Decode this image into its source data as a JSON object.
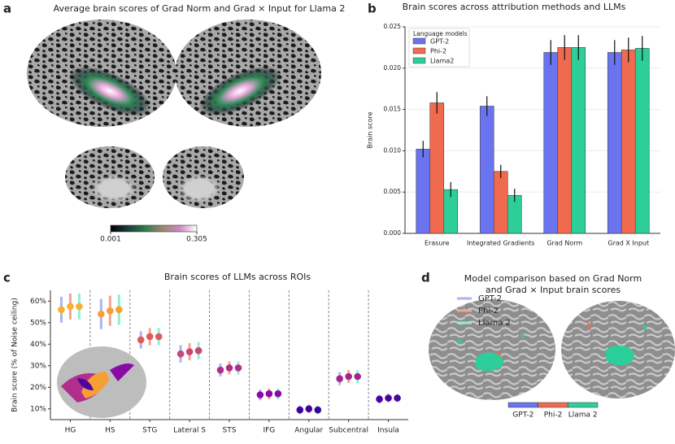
{
  "chart_data": [
    {
      "type": "brainmap",
      "panel": "a",
      "title": "Average brain scores of Grad Norm and Grad × Input for Llama 2",
      "colormap": [
        "#000000",
        "#1e3a3a",
        "#2f7a4a",
        "#9a8a6a",
        "#d088c8",
        "#ffffff"
      ],
      "clim": [
        0.001,
        0.305
      ],
      "colorbar_ticks": [
        0.001,
        0.305
      ]
    },
    {
      "type": "bar",
      "panel": "b",
      "title": "Brain scores across attribution methods and LLMs",
      "ylabel": "Brain score",
      "legend_title": "Language models",
      "legend": "upper left",
      "categories": [
        "Erasure",
        "Integrated Gradients",
        "Grad Norm",
        "Grad X Input"
      ],
      "series": [
        {
          "name": "GPT-2",
          "color": "#6b74f0",
          "values": [
            0.0102,
            0.0154,
            0.0219,
            0.0219
          ],
          "errors": [
            0.001,
            0.0012,
            0.0015,
            0.0015
          ]
        },
        {
          "name": "Phi-2",
          "color": "#f06a50",
          "values": [
            0.0158,
            0.0075,
            0.0225,
            0.0222
          ],
          "errors": [
            0.0013,
            0.0008,
            0.0015,
            0.0015
          ]
        },
        {
          "name": "Llama2",
          "color": "#2ccf9a",
          "values": [
            0.0053,
            0.0046,
            0.0225,
            0.0224
          ],
          "errors": [
            0.0009,
            0.0008,
            0.0015,
            0.0015
          ]
        }
      ],
      "ylim": [
        0,
        0.025
      ],
      "yticks": [
        {
          "value": 0,
          "label": "0.000"
        },
        {
          "value": 0.005,
          "label": "0.005"
        },
        {
          "value": 0.01,
          "label": "0.010"
        },
        {
          "value": 0.015,
          "label": "0.015"
        },
        {
          "value": 0.02,
          "label": "0.020"
        },
        {
          "value": 0.025,
          "label": "0.025"
        }
      ],
      "grid": true
    },
    {
      "type": "dot",
      "panel": "c",
      "title": "Brain scores of LLMs across ROIs",
      "ylabel": "Brain score (% of Noise ceiling)",
      "legend": "upper right",
      "categories": [
        "HG",
        "HS",
        "STG",
        "Lateral S",
        "STS",
        "IFG",
        "Angular",
        "Subcentral",
        "Insula"
      ],
      "point_colors": [
        "#f7b02f",
        "#f59f35",
        "#dc5b5e",
        "#c9457a",
        "#b22e8c",
        "#8a0aa5",
        "#3d049b",
        "#a5238f",
        "#4b03a1"
      ],
      "series": [
        {
          "name": "GPT-2",
          "color": "#aab4f0",
          "values": [
            56,
            54,
            42,
            35.5,
            28,
            16.5,
            9.5,
            24,
            14.5
          ],
          "errors": [
            6,
            7,
            4,
            4,
            3,
            2.5,
            2,
            3,
            2
          ]
        },
        {
          "name": "Phi-2",
          "color": "#f5a58f",
          "values": [
            57.5,
            55.5,
            43.5,
            36.5,
            29,
            17,
            10,
            25,
            15
          ],
          "errors": [
            6,
            7,
            4,
            4,
            3,
            2.5,
            2,
            3,
            2
          ]
        },
        {
          "name": "Llama 2",
          "color": "#8ff0d0",
          "values": [
            57.5,
            56,
            43.5,
            37,
            29,
            17,
            9.5,
            25,
            15
          ],
          "errors": [
            6,
            7,
            4,
            4,
            3,
            2.5,
            2,
            3,
            2
          ]
        }
      ],
      "ylim": [
        5,
        65
      ],
      "yticks": [
        {
          "value": 10,
          "label": "10%"
        },
        {
          "value": 20,
          "label": "20%"
        },
        {
          "value": 30,
          "label": "30%"
        },
        {
          "value": 40,
          "label": "40%"
        },
        {
          "value": 50,
          "label": "50%"
        },
        {
          "value": 60,
          "label": "60%"
        }
      ]
    },
    {
      "type": "brainmap",
      "panel": "d",
      "title": [
        "Model comparison based on Grad Norm",
        "and Grad × Input brain scores"
      ],
      "series": [
        {
          "name": "GPT-2",
          "color": "#6b74f0"
        },
        {
          "name": "Phi-2",
          "color": "#f06a50"
        },
        {
          "name": "Llama 2",
          "color": "#2ccf9a"
        }
      ]
    }
  ]
}
